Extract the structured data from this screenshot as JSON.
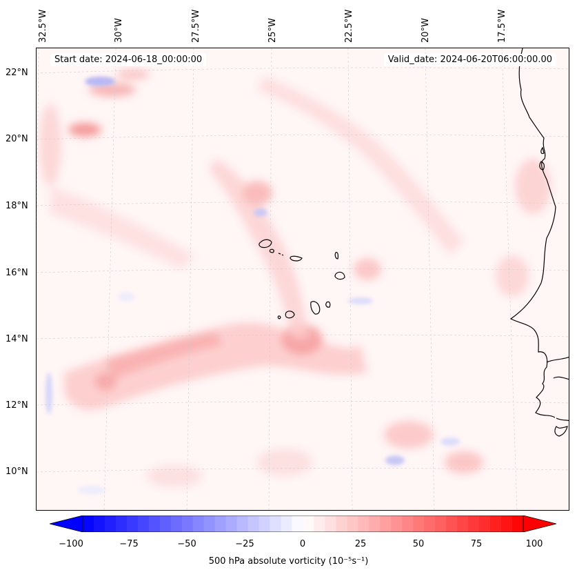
{
  "map": {
    "start_date": "Start date: 2024-06-18_00:00:00",
    "valid_date": "Valid_date: 2024-06-20T06:00:00.00",
    "lon_labels": [
      "32.5°W",
      "30°W",
      "27.5°W",
      "25°W",
      "22.5°W",
      "20°W",
      "17.5°W"
    ],
    "lat_labels": [
      "22°N",
      "20°N",
      "18°N",
      "16°N",
      "14°N",
      "12°N",
      "10°N"
    ],
    "variable": "500 hPa absolute vorticity",
    "units": "(10⁻⁵s⁻¹)"
  },
  "colorbar": {
    "ticks": [
      "−100",
      "−75",
      "−50",
      "−25",
      "0",
      "25",
      "50",
      "75",
      "100"
    ],
    "min": -100,
    "max": 100,
    "negative_color": "#0000ff",
    "positive_color": "#ff0000",
    "neutral_color": "#ffffff"
  },
  "colors": {
    "coastline": "#000000",
    "gridline": "#cccccc"
  }
}
